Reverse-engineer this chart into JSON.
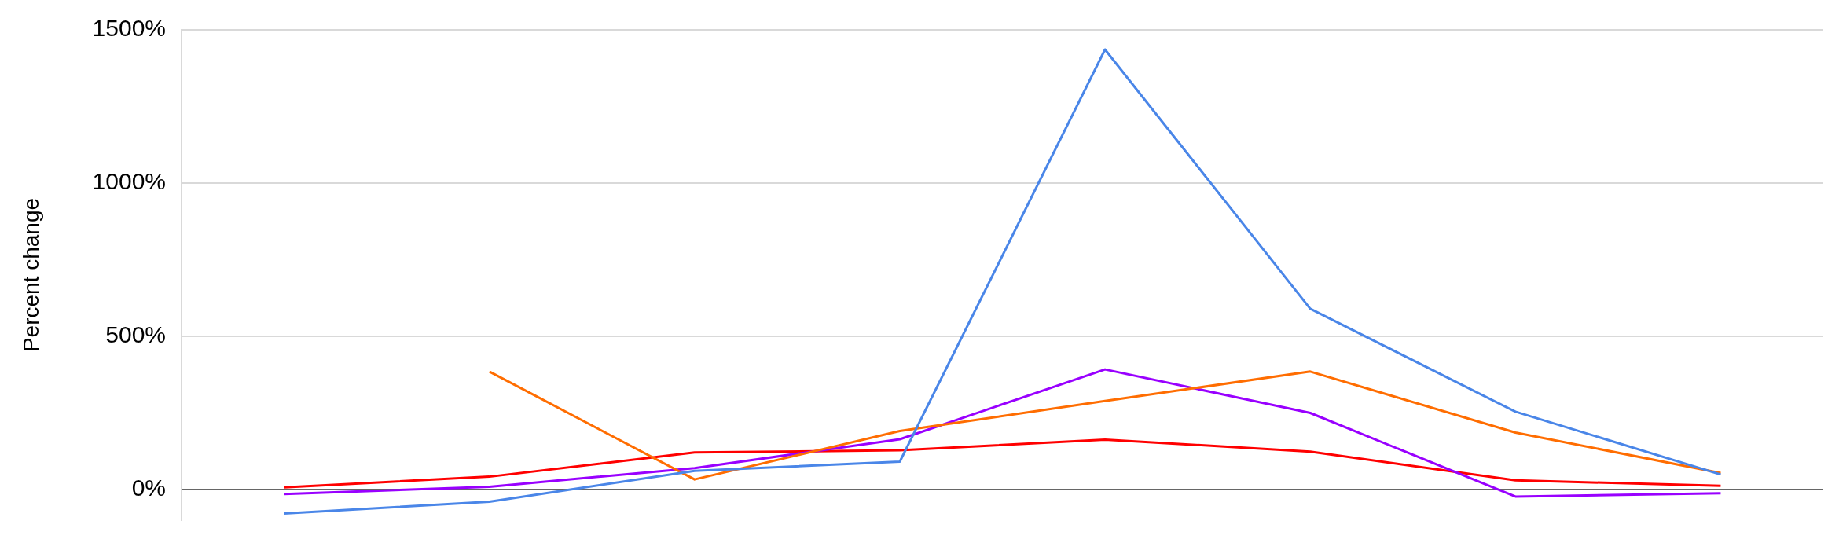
{
  "chart_data": {
    "type": "line",
    "ylabel": "Percent change",
    "categories": [
      null,
      null,
      null,
      null,
      null,
      null,
      null,
      null
    ],
    "series": [
      {
        "color": "#4a86e8",
        "values": [
          -78,
          -40,
          61,
          91,
          1436,
          590,
          254,
          49
        ]
      },
      {
        "color": "#ff6d01",
        "values": [
          null,
          385,
          33,
          191,
          289,
          385,
          186,
          54
        ]
      },
      {
        "color": "#9900ff",
        "values": [
          -15,
          9,
          70,
          164,
          392,
          250,
          -23,
          -12
        ]
      },
      {
        "color": "#ff0000",
        "values": [
          7,
          42,
          121,
          128,
          163,
          124,
          30,
          12
        ]
      }
    ],
    "ylim": [
      -100,
      1500
    ],
    "yticks": [
      {
        "value": 0,
        "label": "0%"
      },
      {
        "value": 500,
        "label": "500%"
      },
      {
        "value": 1000,
        "label": "1000%"
      },
      {
        "value": 1500,
        "label": "1500%"
      }
    ],
    "grid": "y",
    "tick_labels": "y",
    "legend": false,
    "marker": "none",
    "line_style": "solid"
  }
}
